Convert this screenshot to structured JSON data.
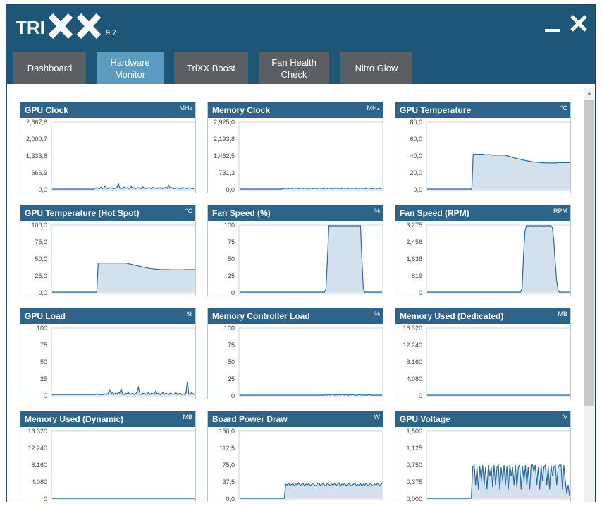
{
  "app": {
    "name": "TRIXX",
    "version": "9.7",
    "accent": "#5b9bbf",
    "header_color": "#1d5677"
  },
  "window_controls": {
    "minimize_icon": "minimize-icon",
    "close_icon": "close-icon"
  },
  "tabs": [
    {
      "label": "Dashboard",
      "active": false
    },
    {
      "label": "Hardware\nMonitor",
      "active": true
    },
    {
      "label": "TriXX Boost",
      "active": false
    },
    {
      "label": "Fan Health\nCheck",
      "active": false
    },
    {
      "label": "Nitro Glow",
      "active": false
    }
  ],
  "chart_data": [
    {
      "type": "area",
      "title": "GPU Clock",
      "unit": "MHz",
      "y_ticks": [
        "2,667,6",
        "2,000,7",
        "1,333,8",
        "666,9",
        "0,0"
      ],
      "ylim": [
        0,
        2667.6
      ],
      "values": [
        0,
        0,
        0,
        0,
        0,
        0,
        0,
        0,
        0,
        0,
        0,
        0,
        0,
        0,
        0,
        0,
        0,
        0,
        0,
        0,
        0,
        0,
        0,
        0,
        0,
        0,
        0,
        0,
        0,
        0,
        40,
        60,
        30,
        20,
        80,
        20,
        60,
        130,
        40,
        20,
        60,
        30,
        50,
        20,
        40,
        60,
        220,
        40,
        20,
        40,
        80,
        30,
        60,
        20,
        40,
        100,
        30,
        60,
        20,
        40,
        60,
        30,
        20,
        90,
        40,
        20,
        30,
        60,
        40,
        20,
        70,
        30,
        50,
        20,
        40,
        60,
        30,
        20,
        40,
        80,
        30,
        150,
        40,
        60,
        30,
        20,
        40,
        50,
        30,
        40,
        20,
        60,
        40,
        30,
        20,
        50,
        40,
        30,
        20,
        40
      ]
    },
    {
      "type": "area",
      "title": "Memory Clock",
      "unit": "MHz",
      "y_ticks": [
        "2,925,0",
        "2,193,8",
        "1,462,5",
        "731,3",
        "0,0"
      ],
      "ylim": [
        0,
        2925
      ],
      "values": [
        0,
        0,
        0,
        0,
        0,
        0,
        0,
        0,
        0,
        0,
        0,
        0,
        0,
        0,
        0,
        0,
        0,
        0,
        0,
        0,
        0,
        0,
        0,
        0,
        0,
        0,
        0,
        0,
        0,
        0,
        40,
        20,
        50,
        30,
        20,
        40,
        30,
        20,
        50,
        30,
        40,
        20,
        30,
        50,
        20,
        40,
        30,
        20,
        40,
        30,
        50,
        20,
        40,
        30,
        20,
        50,
        30,
        40,
        20,
        30,
        50,
        20,
        40,
        30,
        20,
        40,
        30,
        50,
        20,
        40,
        30,
        20,
        50,
        30,
        40,
        20,
        30,
        50,
        20,
        40,
        30,
        20,
        40,
        30,
        50,
        20,
        40,
        30,
        20,
        50,
        30,
        40,
        20,
        30,
        50,
        20,
        40,
        30,
        20,
        40
      ]
    },
    {
      "type": "area",
      "title": "GPU Temperature",
      "unit": "°C",
      "y_ticks": [
        "80,0",
        "60,0",
        "40,0",
        "20,0",
        "0,0"
      ],
      "ylim": [
        0,
        80
      ],
      "values": [
        0,
        0,
        0,
        0,
        0,
        0,
        0,
        0,
        0,
        0,
        0,
        0,
        0,
        0,
        0,
        0,
        0,
        0,
        0,
        0,
        0,
        0,
        0,
        0,
        0,
        0,
        0,
        0,
        0,
        0,
        0,
        0,
        42,
        42,
        42,
        42,
        42,
        42,
        42,
        42,
        41.5,
        41.5,
        41.5,
        41.5,
        41.5,
        41,
        41,
        41,
        41,
        41,
        41,
        41,
        41,
        41,
        41,
        40.5,
        40,
        39.5,
        39,
        38.5,
        38,
        37.5,
        37,
        36.6,
        36.2,
        35.8,
        35.4,
        35,
        34.6,
        34.3,
        34,
        33.7,
        33.4,
        33.1,
        32.9,
        32.7,
        32.5,
        32.3,
        32.1,
        32,
        31.9,
        31.8,
        31.7,
        31.6,
        31.6,
        31.6,
        31.6,
        31.6,
        31.6,
        31.6,
        31.6,
        32,
        32,
        32,
        32,
        32,
        32,
        32,
        32,
        32
      ]
    },
    {
      "type": "area",
      "title": "GPU Temperature (Hot Spot)",
      "unit": "°C",
      "y_ticks": [
        "100,0",
        "75,0",
        "50,0",
        "25,0",
        "0,0"
      ],
      "ylim": [
        0,
        100
      ],
      "values": [
        0,
        0,
        0,
        0,
        0,
        0,
        0,
        0,
        0,
        0,
        0,
        0,
        0,
        0,
        0,
        0,
        0,
        0,
        0,
        0,
        0,
        0,
        0,
        0,
        0,
        0,
        0,
        0,
        0,
        0,
        0,
        0,
        44,
        44,
        44,
        44,
        44,
        44,
        44,
        44,
        44,
        44,
        44,
        44,
        44,
        44,
        44,
        44,
        44,
        44,
        44,
        44,
        43.5,
        43,
        42.5,
        42,
        41.5,
        41,
        40.5,
        40,
        39.5,
        39,
        38.5,
        38,
        37.5,
        37,
        36.5,
        36.2,
        35.9,
        35.6,
        35.3,
        35,
        34.8,
        34.6,
        34.4,
        34.2,
        34,
        34,
        34,
        34,
        34,
        34,
        33.8,
        33.8,
        33.8,
        33.8,
        33.8,
        33.8,
        33.8,
        33.8,
        33.8,
        33.8,
        34,
        34,
        34,
        34,
        34,
        34,
        34,
        34
      ]
    },
    {
      "type": "area",
      "title": "Fan Speed (%)",
      "unit": "%",
      "y_ticks": [
        "100",
        "75",
        "50",
        "25",
        "0"
      ],
      "ylim": [
        0,
        100
      ],
      "values": [
        0,
        0,
        0,
        0,
        0,
        0,
        0,
        0,
        0,
        0,
        0,
        0,
        0,
        0,
        0,
        0,
        0,
        0,
        0,
        0,
        0,
        0,
        0,
        0,
        0,
        0,
        0,
        0,
        0,
        0,
        0,
        0,
        0,
        0,
        0,
        0,
        0,
        0,
        0,
        0,
        0,
        0,
        0,
        0,
        0,
        0,
        0,
        0,
        0,
        0,
        0,
        0,
        0,
        0,
        0,
        0,
        0,
        0,
        0,
        0,
        5,
        50,
        100,
        100,
        100,
        100,
        100,
        100,
        100,
        100,
        100,
        100,
        100,
        100,
        100,
        100,
        100,
        100,
        100,
        100,
        100,
        100,
        100,
        100,
        100,
        50,
        5,
        0,
        0,
        0,
        0,
        0,
        0,
        0,
        0,
        0,
        0,
        0,
        0,
        0
      ]
    },
    {
      "type": "area",
      "title": "Fan Speed (RPM)",
      "unit": "RPM",
      "y_ticks": [
        "3,275",
        "2,456",
        "1,638",
        "819",
        "0"
      ],
      "ylim": [
        0,
        3275
      ],
      "values": [
        0,
        0,
        0,
        0,
        0,
        0,
        0,
        0,
        0,
        0,
        0,
        0,
        0,
        0,
        0,
        0,
        0,
        0,
        0,
        0,
        0,
        0,
        0,
        0,
        0,
        0,
        0,
        0,
        0,
        0,
        0,
        0,
        0,
        0,
        0,
        0,
        0,
        0,
        0,
        0,
        0,
        0,
        0,
        0,
        0,
        0,
        0,
        0,
        0,
        0,
        0,
        0,
        0,
        0,
        0,
        0,
        0,
        0,
        0,
        0,
        0,
        0,
        0,
        0,
        0,
        0,
        200,
        1800,
        3000,
        3275,
        3275,
        3275,
        3275,
        3275,
        3260,
        3275,
        3275,
        3275,
        3275,
        3275,
        3275,
        3260,
        3275,
        3275,
        3275,
        3275,
        3275,
        3200,
        2600,
        1500,
        600,
        100,
        0,
        0,
        0,
        0,
        0,
        0,
        0,
        0
      ]
    },
    {
      "type": "area",
      "title": "GPU Load",
      "unit": "%",
      "y_ticks": [
        "100",
        "75",
        "50",
        "25",
        "0"
      ],
      "ylim": [
        0,
        100
      ],
      "values": [
        0,
        1,
        1,
        1,
        1,
        1,
        1,
        1,
        1,
        1,
        1,
        1,
        1,
        1,
        1,
        1,
        1,
        1,
        1,
        1,
        1,
        1,
        1,
        1,
        1,
        1,
        1,
        1,
        1,
        1,
        1,
        2,
        1,
        1,
        1,
        1,
        1,
        2,
        1,
        3,
        8,
        2,
        4,
        1,
        3,
        2,
        4,
        3,
        10,
        2,
        1,
        3,
        2,
        4,
        1,
        2,
        3,
        1,
        2,
        5,
        12,
        2,
        1,
        3,
        2,
        1,
        2,
        4,
        1,
        3,
        2,
        1,
        6,
        2,
        3,
        1,
        2,
        4,
        1,
        3,
        2,
        1,
        3,
        2,
        1,
        2,
        4,
        1,
        2,
        3,
        1,
        2,
        1,
        3,
        20,
        2,
        1,
        4,
        2,
        1
      ]
    },
    {
      "type": "area",
      "title": "Memory Controller Load",
      "unit": "%",
      "y_ticks": [
        "100",
        "75",
        "50",
        "25",
        "0"
      ],
      "ylim": [
        0,
        100
      ],
      "values": [
        0,
        0,
        0,
        0,
        0,
        0,
        0,
        0,
        0,
        0,
        0,
        0,
        0,
        0,
        0,
        0,
        0,
        0,
        0,
        0,
        0,
        0,
        0,
        0,
        0,
        0,
        0,
        0,
        0,
        0,
        0,
        0,
        0,
        0,
        0,
        0,
        0,
        0,
        0,
        0,
        0,
        0,
        0,
        0,
        0,
        0,
        0,
        0,
        0,
        0,
        0,
        0,
        0,
        0,
        0,
        0,
        0,
        0,
        0,
        0,
        1,
        0,
        1,
        0,
        1,
        1,
        0,
        1,
        0,
        1,
        0,
        1,
        1,
        0,
        1,
        0,
        0,
        1,
        0,
        1,
        0,
        0,
        0,
        1,
        0,
        1,
        0,
        0,
        0,
        0,
        1,
        0,
        0,
        0,
        0,
        0,
        0,
        0,
        0,
        0
      ]
    },
    {
      "type": "area",
      "title": "Memory Used (Dedicated)",
      "unit": "MB",
      "y_ticks": [
        "16.320",
        "12.240",
        "8.160",
        "4.080",
        "0"
      ],
      "ylim": [
        0,
        16320
      ],
      "values": [
        0,
        0,
        0,
        0,
        0,
        0,
        0,
        0,
        0,
        0,
        0,
        0,
        0,
        0,
        0,
        0,
        0,
        0,
        0,
        0,
        0,
        0,
        0,
        0,
        0,
        0,
        0,
        0,
        0,
        0,
        0,
        0,
        0,
        0,
        0,
        0,
        0,
        0,
        0,
        0,
        0,
        0,
        0,
        0,
        0,
        0,
        0,
        0,
        0,
        0,
        0,
        0,
        0,
        0,
        0,
        0,
        0,
        0,
        0,
        0,
        0,
        0,
        0,
        0,
        0,
        0,
        0,
        0,
        0,
        0,
        0,
        0,
        0,
        0,
        0,
        0,
        0,
        0,
        0,
        0,
        0,
        0,
        0,
        0,
        0,
        0,
        0,
        0,
        0,
        0,
        0,
        0,
        0,
        0,
        0,
        0,
        0,
        0,
        0,
        0
      ]
    },
    {
      "type": "area",
      "title": "Memory Used (Dynamic)",
      "unit": "MB",
      "y_ticks": [
        "16.320",
        "12.240",
        "8.160",
        "4.080",
        "0"
      ],
      "ylim": [
        0,
        16320
      ],
      "values": [
        0,
        0,
        0,
        0,
        0,
        0,
        0,
        0,
        0,
        0,
        0,
        0,
        0,
        0,
        0,
        0,
        0,
        0,
        0,
        0,
        0,
        0,
        0,
        0,
        0,
        0,
        0,
        0,
        0,
        0,
        0,
        0,
        0,
        0,
        0,
        0,
        0,
        0,
        0,
        0,
        0,
        0,
        0,
        0,
        0,
        0,
        0,
        0,
        0,
        0,
        0,
        0,
        0,
        0,
        0,
        0,
        0,
        0,
        0,
        0,
        0,
        0,
        0,
        0,
        0,
        0,
        0,
        0,
        0,
        0,
        0,
        0,
        0,
        0,
        0,
        0,
        0,
        0,
        0,
        0,
        0,
        0,
        0,
        0,
        0,
        0,
        0,
        0,
        0,
        0,
        0,
        0,
        0,
        0,
        0,
        0,
        0,
        0,
        0,
        0
      ]
    },
    {
      "type": "area",
      "title": "Board Power Draw",
      "unit": "W",
      "y_ticks": [
        "150,0",
        "112,5",
        "75,0",
        "37,5",
        "0,0"
      ],
      "ylim": [
        0,
        150
      ],
      "values": [
        0,
        0,
        0,
        0,
        0,
        0,
        0,
        0,
        0,
        0,
        0,
        0,
        0,
        0,
        0,
        0,
        0,
        0,
        0,
        0,
        0,
        0,
        0,
        0,
        0,
        0,
        0,
        0,
        0,
        0,
        0,
        0,
        32,
        30,
        34,
        29,
        31,
        33,
        28,
        32,
        30,
        35,
        29,
        31,
        34,
        28,
        32,
        30,
        33,
        29,
        31,
        34,
        30,
        28,
        32,
        35,
        29,
        31,
        33,
        30,
        28,
        34,
        31,
        29,
        32,
        30,
        33,
        29,
        31,
        35,
        28,
        32,
        30,
        34,
        29,
        31,
        33,
        30,
        28,
        32,
        34,
        29,
        31,
        30,
        33,
        28,
        32,
        30,
        34,
        29,
        31,
        33,
        30,
        28,
        32,
        30,
        34,
        29,
        31,
        33
      ]
    },
    {
      "type": "area",
      "title": "GPU Voltage",
      "unit": "V",
      "y_ticks": [
        "1,500",
        "1,125",
        "0,750",
        "0,375",
        "0,000"
      ],
      "ylim": [
        0,
        1.5
      ],
      "values": [
        0,
        0,
        0,
        0,
        0,
        0,
        0,
        0,
        0,
        0,
        0,
        0,
        0,
        0,
        0,
        0,
        0,
        0,
        0,
        0,
        0,
        0,
        0,
        0,
        0,
        0,
        0,
        0,
        0,
        0,
        0,
        0,
        0.7,
        0.75,
        0.3,
        0.7,
        0.2,
        0.72,
        0.4,
        0.75,
        0.3,
        0.7,
        0.2,
        0.75,
        0.5,
        0.7,
        0.25,
        0.75,
        0.3,
        0.7,
        0.75,
        0.2,
        0.7,
        0.4,
        0.75,
        0.3,
        0.72,
        0.2,
        0.75,
        0.5,
        0.7,
        0.3,
        0.75,
        0.25,
        0.7,
        0.75,
        0.2,
        0.72,
        0.4,
        0.75,
        0.3,
        0.7,
        0.2,
        0.75,
        0.75,
        0.6,
        0.75,
        0.3,
        0.7,
        0.2,
        0.75,
        0.4,
        0.7,
        0.75,
        0.3,
        0.72,
        0.2,
        0.75,
        0.5,
        0.7,
        0.75,
        0.3,
        0.7,
        0.75,
        0.75,
        0.2,
        0.75,
        0.4,
        0.1,
        0.3,
        0.05
      ]
    }
  ]
}
